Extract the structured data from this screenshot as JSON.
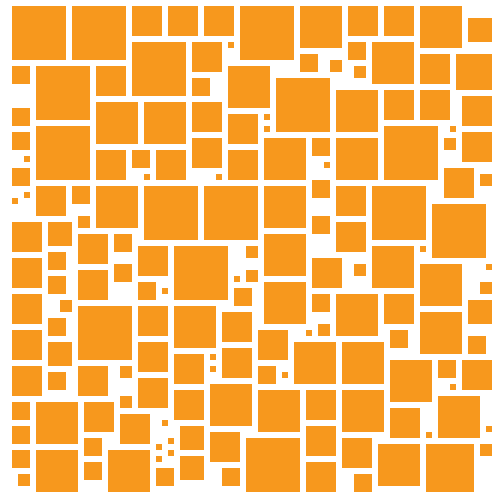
{
  "artwork": {
    "background_color": "#ffffff",
    "tile_color": "#f7981d",
    "tile_shape": "square"
  }
}
